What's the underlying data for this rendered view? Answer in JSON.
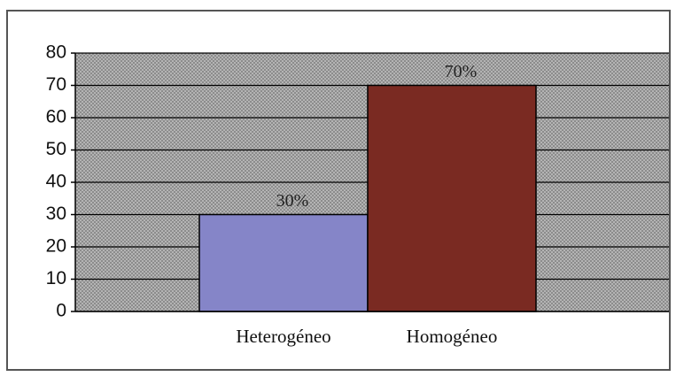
{
  "chart_data": {
    "type": "bar",
    "categories": [
      "Heterogéneo",
      "Homogéneo"
    ],
    "values": [
      30,
      70
    ],
    "value_labels": [
      "30%",
      "70%"
    ],
    "colors": [
      "#8585c8",
      "#7a2a22"
    ],
    "ylim": [
      0,
      80
    ],
    "yticks": [
      0,
      10,
      20,
      30,
      40,
      50,
      60,
      70,
      80
    ],
    "grid": true
  }
}
